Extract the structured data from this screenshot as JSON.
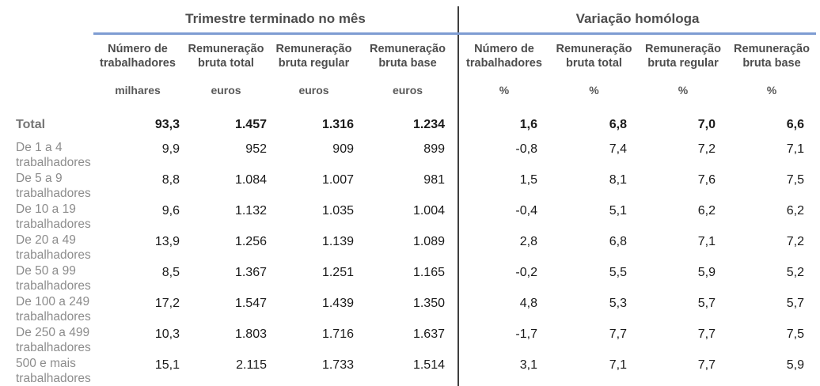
{
  "table": {
    "groups": [
      {
        "title": "Trimestre terminado no mês",
        "columns": [
          {
            "label": "Número de trabalhadores",
            "unit": "milhares"
          },
          {
            "label": "Remuneração bruta total",
            "unit": "euros"
          },
          {
            "label": "Remuneração bruta regular",
            "unit": "euros"
          },
          {
            "label": "Remuneração bruta base",
            "unit": "euros"
          }
        ]
      },
      {
        "title": "Variação homóloga",
        "columns": [
          {
            "label": "Número de trabalhadores",
            "unit": "%"
          },
          {
            "label": "Remuneração bruta total",
            "unit": "%"
          },
          {
            "label": "Remuneração bruta regular",
            "unit": "%"
          },
          {
            "label": "Remuneração bruta base",
            "unit": "%"
          }
        ]
      }
    ],
    "rows": [
      {
        "label": "Total",
        "label2": "",
        "total": true,
        "values": [
          "93,3",
          "1.457",
          "1.316",
          "1.234",
          "1,6",
          "6,8",
          "7,0",
          "6,6"
        ]
      },
      {
        "label": "De 1 a 4",
        "label2": "trabalhadores",
        "total": false,
        "values": [
          "9,9",
          "952",
          "909",
          "899",
          "-0,8",
          "7,4",
          "7,2",
          "7,1"
        ]
      },
      {
        "label": "De 5 a 9",
        "label2": "trabalhadores",
        "total": false,
        "values": [
          "8,8",
          "1.084",
          "1.007",
          "981",
          "1,5",
          "8,1",
          "7,6",
          "7,5"
        ]
      },
      {
        "label": "De 10 a 19",
        "label2": "trabalhadores",
        "total": false,
        "values": [
          "9,6",
          "1.132",
          "1.035",
          "1.004",
          "-0,4",
          "5,1",
          "6,2",
          "6,2"
        ]
      },
      {
        "label": "De 20 a 49",
        "label2": "trabalhadores",
        "total": false,
        "values": [
          "13,9",
          "1.256",
          "1.139",
          "1.089",
          "2,8",
          "6,8",
          "7,1",
          "7,2"
        ]
      },
      {
        "label": "De 50 a 99",
        "label2": "trabalhadores",
        "total": false,
        "values": [
          "8,5",
          "1.367",
          "1.251",
          "1.165",
          "-0,2",
          "5,5",
          "5,9",
          "5,2"
        ]
      },
      {
        "label": "De 100 a 249",
        "label2": "trabalhadores",
        "total": false,
        "values": [
          "17,2",
          "1.547",
          "1.439",
          "1.350",
          "4,8",
          "5,3",
          "5,7",
          "5,7"
        ]
      },
      {
        "label": "De 250 a 499",
        "label2": "trabalhadores",
        "total": false,
        "values": [
          "10,3",
          "1.803",
          "1.716",
          "1.637",
          "-1,7",
          "7,7",
          "7,7",
          "7,5"
        ]
      },
      {
        "label": "500 e mais",
        "label2": "trabalhadores",
        "total": false,
        "values": [
          "15,1",
          "2.115",
          "1.733",
          "1.514",
          "3,1",
          "7,1",
          "7,7",
          "5,9"
        ]
      }
    ],
    "colors": {
      "accent_line": "#7e9cd2",
      "group_divider": "#3f3f3f",
      "header_text": "#4d4d4d",
      "unit_text": "#595959",
      "row_label_text": "#8c8c8c",
      "total_label_text": "#757575",
      "value_text": "#1a1a1a"
    }
  },
  "chart_data": {
    "type": "table",
    "title": "",
    "column_groups": [
      "Trimestre terminado no mês",
      "Variação homóloga"
    ],
    "columns": [
      {
        "group": "Trimestre terminado no mês",
        "label": "Número de trabalhadores",
        "unit": "milhares"
      },
      {
        "group": "Trimestre terminado no mês",
        "label": "Remuneração bruta total",
        "unit": "euros"
      },
      {
        "group": "Trimestre terminado no mês",
        "label": "Remuneração bruta regular",
        "unit": "euros"
      },
      {
        "group": "Trimestre terminado no mês",
        "label": "Remuneração bruta base",
        "unit": "euros"
      },
      {
        "group": "Variação homóloga",
        "label": "Número de trabalhadores",
        "unit": "%"
      },
      {
        "group": "Variação homóloga",
        "label": "Remuneração bruta total",
        "unit": "%"
      },
      {
        "group": "Variação homóloga",
        "label": "Remuneração bruta regular",
        "unit": "%"
      },
      {
        "group": "Variação homóloga",
        "label": "Remuneração bruta base",
        "unit": "%"
      }
    ],
    "row_labels": [
      "Total",
      "De 1 a 4 trabalhadores",
      "De 5 a 9 trabalhadores",
      "De 10 a 19 trabalhadores",
      "De 20 a 49 trabalhadores",
      "De 50 a 99 trabalhadores",
      "De 100 a 249 trabalhadores",
      "De 250 a 499 trabalhadores",
      "500 e mais trabalhadores"
    ],
    "rows": [
      [
        93.3,
        1457,
        1316,
        1234,
        1.6,
        6.8,
        7.0,
        6.6
      ],
      [
        9.9,
        952,
        909,
        899,
        -0.8,
        7.4,
        7.2,
        7.1
      ],
      [
        8.8,
        1084,
        1007,
        981,
        1.5,
        8.1,
        7.6,
        7.5
      ],
      [
        9.6,
        1132,
        1035,
        1004,
        -0.4,
        5.1,
        6.2,
        6.2
      ],
      [
        13.9,
        1256,
        1139,
        1089,
        2.8,
        6.8,
        7.1,
        7.2
      ],
      [
        8.5,
        1367,
        1251,
        1165,
        -0.2,
        5.5,
        5.9,
        5.2
      ],
      [
        17.2,
        1547,
        1439,
        1350,
        4.8,
        5.3,
        5.7,
        5.7
      ],
      [
        10.3,
        1803,
        1716,
        1637,
        -1.7,
        7.7,
        7.7,
        7.5
      ],
      [
        15.1,
        2115,
        1733,
        1514,
        3.1,
        7.1,
        7.7,
        5.9
      ]
    ]
  }
}
